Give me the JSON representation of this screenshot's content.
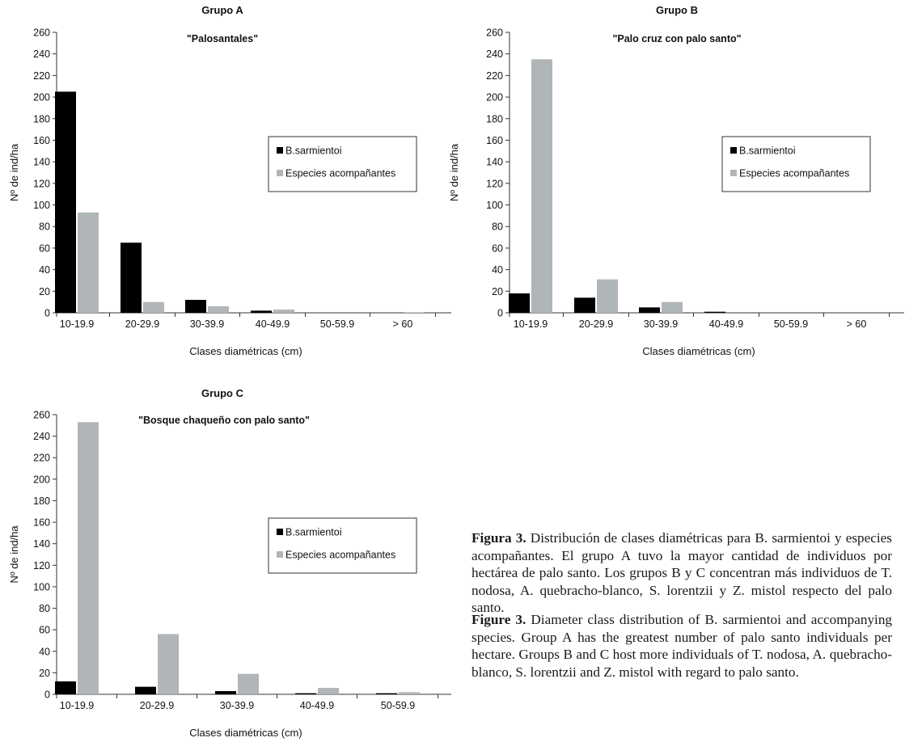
{
  "chart_data": [
    {
      "type": "bar",
      "title": "Grupo A",
      "subtitle": "\"Palosantales\"",
      "xlabel": "Clases diamétricas (cm)",
      "ylabel": "Nº de ind/ha",
      "ylim": [
        0,
        260
      ],
      "yticks": [
        0,
        20,
        40,
        60,
        80,
        100,
        120,
        140,
        160,
        180,
        200,
        220,
        240,
        260
      ],
      "categories": [
        "10-19.9",
        "20-29.9",
        "30-39.9",
        "40-49.9",
        "50-59.9",
        "> 60"
      ],
      "series": [
        {
          "name": "B.sarmientoi",
          "color": "#000000",
          "values": [
            205,
            65,
            12,
            2,
            0,
            0
          ]
        },
        {
          "name": "Especies acompañantes",
          "color": "#b0b5b8",
          "values": [
            93,
            10,
            6,
            3,
            0,
            0.5
          ]
        }
      ],
      "legend": "right"
    },
    {
      "type": "bar",
      "title": "Grupo B",
      "subtitle": "\"Palo cruz con palo santo\"",
      "xlabel": "Clases diamétricas (cm)",
      "ylabel": "Nº de ind/ha",
      "ylim": [
        0,
        260
      ],
      "yticks": [
        0,
        20,
        40,
        60,
        80,
        100,
        120,
        140,
        160,
        180,
        200,
        220,
        240,
        260
      ],
      "categories": [
        "10-19.9",
        "20-29.9",
        "30-39.9",
        "40-49.9",
        "50-59.9",
        "> 60"
      ],
      "series": [
        {
          "name": "B.sarmientoi",
          "color": "#000000",
          "values": [
            18,
            14,
            5,
            1,
            0,
            0
          ]
        },
        {
          "name": "Especies acompañantes",
          "color": "#b0b5b8",
          "values": [
            235,
            31,
            10,
            0,
            0,
            0
          ]
        }
      ],
      "legend": "right"
    },
    {
      "type": "bar",
      "title": "Grupo C",
      "subtitle": "\"Bosque chaqueño con palo santo\"",
      "xlabel": "Clases diamétricas (cm)",
      "ylabel": "Nº de ind/ha",
      "ylim": [
        0,
        260
      ],
      "yticks": [
        0,
        20,
        40,
        60,
        80,
        100,
        120,
        140,
        160,
        180,
        200,
        220,
        240,
        260
      ],
      "categories": [
        "10-19.9",
        "20-29.9",
        "30-39.9",
        "40-49.9",
        "50-59.9"
      ],
      "series": [
        {
          "name": "B.sarmientoi",
          "color": "#000000",
          "values": [
            12,
            7,
            3,
            1,
            1
          ]
        },
        {
          "name": "Especies acompañantes",
          "color": "#b0b5b8",
          "values": [
            253,
            56,
            19,
            6,
            2
          ]
        }
      ],
      "legend": "right"
    }
  ],
  "captions": {
    "es": {
      "label": "Figura 3.",
      "text": " Distribución de clases diamétricas para B. sarmientoi y especies acompañantes. El grupo A tuvo la mayor cantidad de individuos por hectárea de palo santo. Los grupos B y C concentran más individuos de T. nodosa, A. quebracho-blanco, S. lorentzii y Z. mistol respecto del palo santo."
    },
    "en": {
      "label": "Figure 3.",
      "text": " Diameter class distribution of B. sarmientoi and accompanying species. Group A has the greatest number of palo santo individuals per hectare. Groups B and C host more individuals of T. nodosa, A. quebracho-blanco, S. lorentzii and Z. mistol with regard to palo santo."
    }
  }
}
